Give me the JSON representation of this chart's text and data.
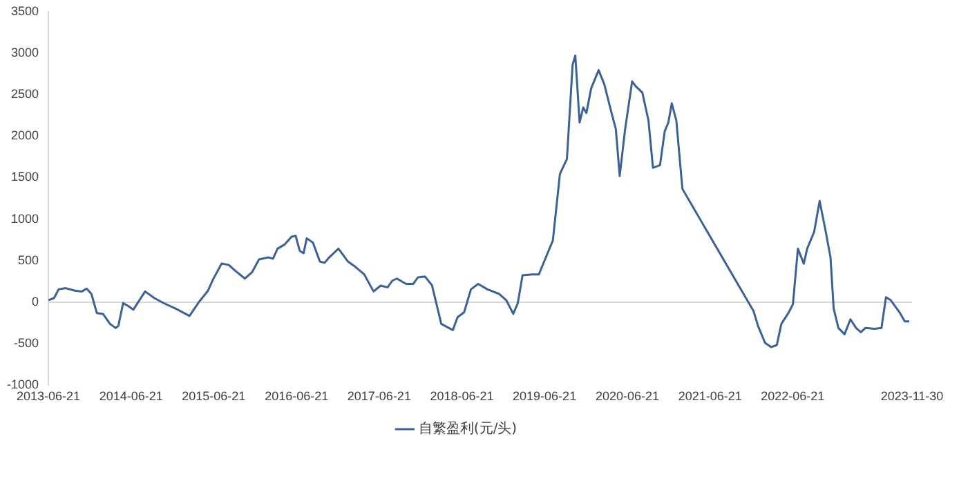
{
  "chart_data": {
    "type": "line",
    "legend": "bottom",
    "marker": "none",
    "line_style": "solid",
    "grid": false,
    "xlim": [
      "2013-06-21",
      "2023-11-30"
    ],
    "xticks": [
      "2013-06-21",
      "2014-06-21",
      "2015-06-21",
      "2016-06-21",
      "2017-06-21",
      "2018-06-21",
      "2019-06-21",
      "2020-06-21",
      "2021-06-21",
      "2022-06-21",
      "2023-11-30"
    ],
    "ylim": [
      -1000,
      3500
    ],
    "yticks": [
      -1000,
      -500,
      0,
      500,
      1000,
      1500,
      2000,
      2500,
      3000,
      3500
    ],
    "ref_lines": [
      {
        "axis": "y",
        "value": 0,
        "color": "#d9d9d9"
      }
    ],
    "x": [
      "2013-06-21",
      "2013-07-16",
      "2013-08-05",
      "2013-09-05",
      "2013-10-16",
      "2013-11-16",
      "2013-12-07",
      "2013-12-28",
      "2014-01-21",
      "2014-02-17",
      "2014-03-20",
      "2014-04-14",
      "2014-04-26",
      "2014-05-17",
      "2014-06-11",
      "2014-07-01",
      "2014-08-22",
      "2014-10-02",
      "2014-11-12",
      "2015-01-03",
      "2015-03-06",
      "2015-04-16",
      "2015-05-27",
      "2015-06-19",
      "2015-07-26",
      "2015-08-26",
      "2015-09-26",
      "2015-11-06",
      "2015-12-07",
      "2016-01-07",
      "2016-02-17",
      "2016-03-09",
      "2016-03-29",
      "2016-04-29",
      "2016-05-30",
      "2016-06-17",
      "2016-07-05",
      "2016-07-22",
      "2016-08-05",
      "2016-09-01",
      "2016-10-02",
      "2016-10-23",
      "2016-11-12",
      "2016-12-23",
      "2017-02-03",
      "2017-03-06",
      "2017-04-16",
      "2017-05-27",
      "2017-06-27",
      "2017-07-28",
      "2017-08-18",
      "2017-09-07",
      "2017-10-18",
      "2017-11-18",
      "2017-12-09",
      "2018-01-09",
      "2018-02-09",
      "2018-03-22",
      "2018-05-12",
      "2018-06-02",
      "2018-07-01",
      "2018-07-31",
      "2018-09-01",
      "2018-10-12",
      "2018-12-03",
      "2019-01-03",
      "2019-02-03",
      "2019-02-23",
      "2019-03-16",
      "2019-04-26",
      "2019-05-27",
      "2019-06-27",
      "2019-07-28",
      "2019-08-28",
      "2019-09-28",
      "2019-10-23",
      "2019-11-04",
      "2019-11-23",
      "2019-12-09",
      "2019-12-23",
      "2020-01-13",
      "2020-02-15",
      "2020-03-11",
      "2020-04-11",
      "2020-05-01",
      "2020-05-18",
      "2020-06-11",
      "2020-07-12",
      "2020-07-28",
      "2020-08-26",
      "2020-09-22",
      "2020-10-12",
      "2020-11-12",
      "2020-12-03",
      "2020-12-19",
      "2021-01-03",
      "2021-01-23",
      "2021-02-19",
      "2021-12-30",
      "2022-01-19",
      "2022-02-19",
      "2022-03-18",
      "2022-04-12",
      "2022-05-02",
      "2022-06-02",
      "2022-06-22",
      "2022-07-14",
      "2022-08-09",
      "2022-08-24",
      "2022-09-24",
      "2022-10-18",
      "2022-11-14",
      "2022-12-05",
      "2022-12-19",
      "2023-01-09",
      "2023-02-05",
      "2023-03-03",
      "2023-03-28",
      "2023-04-18",
      "2023-05-08",
      "2023-06-19",
      "2023-07-18",
      "2023-08-07",
      "2023-08-28",
      "2023-10-08",
      "2023-10-29",
      "2023-11-18"
    ],
    "series": [
      {
        "name": "自繁盈利(元/头)",
        "color": "#3b6196",
        "values": [
          25,
          50,
          155,
          170,
          140,
          130,
          165,
          100,
          -130,
          -140,
          -260,
          -310,
          -285,
          -10,
          -50,
          -90,
          130,
          50,
          -10,
          -75,
          -165,
          0,
          140,
          280,
          465,
          450,
          375,
          285,
          360,
          515,
          540,
          525,
          645,
          695,
          790,
          800,
          620,
          590,
          770,
          720,
          490,
          475,
          540,
          645,
          490,
          430,
          335,
          130,
          200,
          180,
          260,
          285,
          220,
          220,
          300,
          310,
          205,
          -260,
          -335,
          -180,
          -120,
          155,
          220,
          155,
          100,
          25,
          -140,
          -10,
          325,
          335,
          335,
          540,
          745,
          1545,
          1725,
          2860,
          2970,
          2165,
          2345,
          2280,
          2575,
          2795,
          2625,
          2290,
          2085,
          1520,
          2085,
          2660,
          2600,
          2525,
          2190,
          1620,
          1650,
          2060,
          2165,
          2395,
          2190,
          1365,
          -105,
          -285,
          -490,
          -540,
          -515,
          -260,
          -130,
          -25,
          645,
          465,
          645,
          850,
          1220,
          850,
          540,
          -75,
          -310,
          -385,
          -205,
          -310,
          -360,
          -310,
          -320,
          -310,
          60,
          25,
          -130,
          -230,
          -230
        ]
      }
    ]
  }
}
